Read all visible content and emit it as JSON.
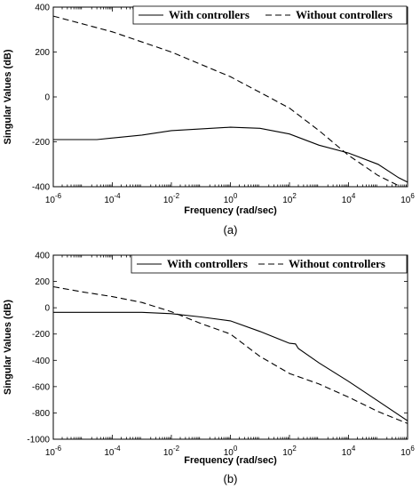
{
  "chart_data": [
    {
      "type": "line",
      "panel_label": "(a)",
      "xlabel": "Frequency (rad/sec)",
      "ylabel": "Singular Values (dB)",
      "xscale": "log",
      "xlim": [
        1e-06,
        1000000.0
      ],
      "ylim": [
        -400,
        400
      ],
      "xticks": [
        -6,
        -4,
        -2,
        0,
        2,
        4,
        6
      ],
      "xtick_base": "10",
      "yticks": [
        400,
        200,
        0,
        -200,
        -400
      ],
      "grid": false,
      "legend_position": "top-right",
      "series": [
        {
          "name": "With controllers",
          "style": "solid",
          "x": [
            1e-06,
            3e-05,
            0.001,
            0.01,
            1,
            10.0,
            100.0,
            1000.0,
            10000.0,
            100000.0,
            500000.0,
            1000000.0
          ],
          "y": [
            -190,
            -190,
            -170,
            -150,
            -135,
            -140,
            -165,
            -215,
            -250,
            -300,
            -360,
            -380
          ]
        },
        {
          "name": "Without controllers",
          "style": "dashed",
          "x": [
            1e-06,
            0.0001,
            0.01,
            1,
            10.0,
            100.0,
            1000.0,
            10000.0,
            100000.0,
            1000000.0
          ],
          "y": [
            360,
            290,
            200,
            90,
            20,
            -50,
            -150,
            -260,
            -350,
            -415
          ]
        }
      ]
    },
    {
      "type": "line",
      "panel_label": "(b)",
      "xlabel": "Frequency (rad/sec)",
      "ylabel": "Singular Values (dB)",
      "xscale": "log",
      "xlim": [
        1e-06,
        1000000.0
      ],
      "ylim": [
        -1000,
        400
      ],
      "xticks": [
        -6,
        -4,
        -2,
        0,
        2,
        4,
        6
      ],
      "xtick_base": "10",
      "yticks": [
        400,
        200,
        0,
        -200,
        -400,
        -600,
        -800,
        -1000
      ],
      "grid": false,
      "legend_position": "top-right",
      "series": [
        {
          "name": "With controllers",
          "style": "solid",
          "x": [
            1e-06,
            0.0001,
            0.001,
            0.01,
            0.1,
            1,
            10.0,
            100.0,
            160.0,
            200.0,
            1000.0,
            10000.0,
            100000.0,
            1000000.0
          ],
          "y": [
            -35,
            -35,
            -35,
            -45,
            -70,
            -100,
            -180,
            -270,
            -275,
            -310,
            -420,
            -560,
            -710,
            -860
          ]
        },
        {
          "name": "Without controllers",
          "style": "dashed",
          "x": [
            1e-06,
            1e-05,
            0.0001,
            0.001,
            0.01,
            0.1,
            1,
            10.0,
            100.0,
            1000.0,
            10000.0,
            100000.0,
            1000000.0
          ],
          "y": [
            160,
            120,
            85,
            40,
            -30,
            -120,
            -200,
            -370,
            -500,
            -580,
            -680,
            -790,
            -880
          ]
        }
      ]
    }
  ]
}
